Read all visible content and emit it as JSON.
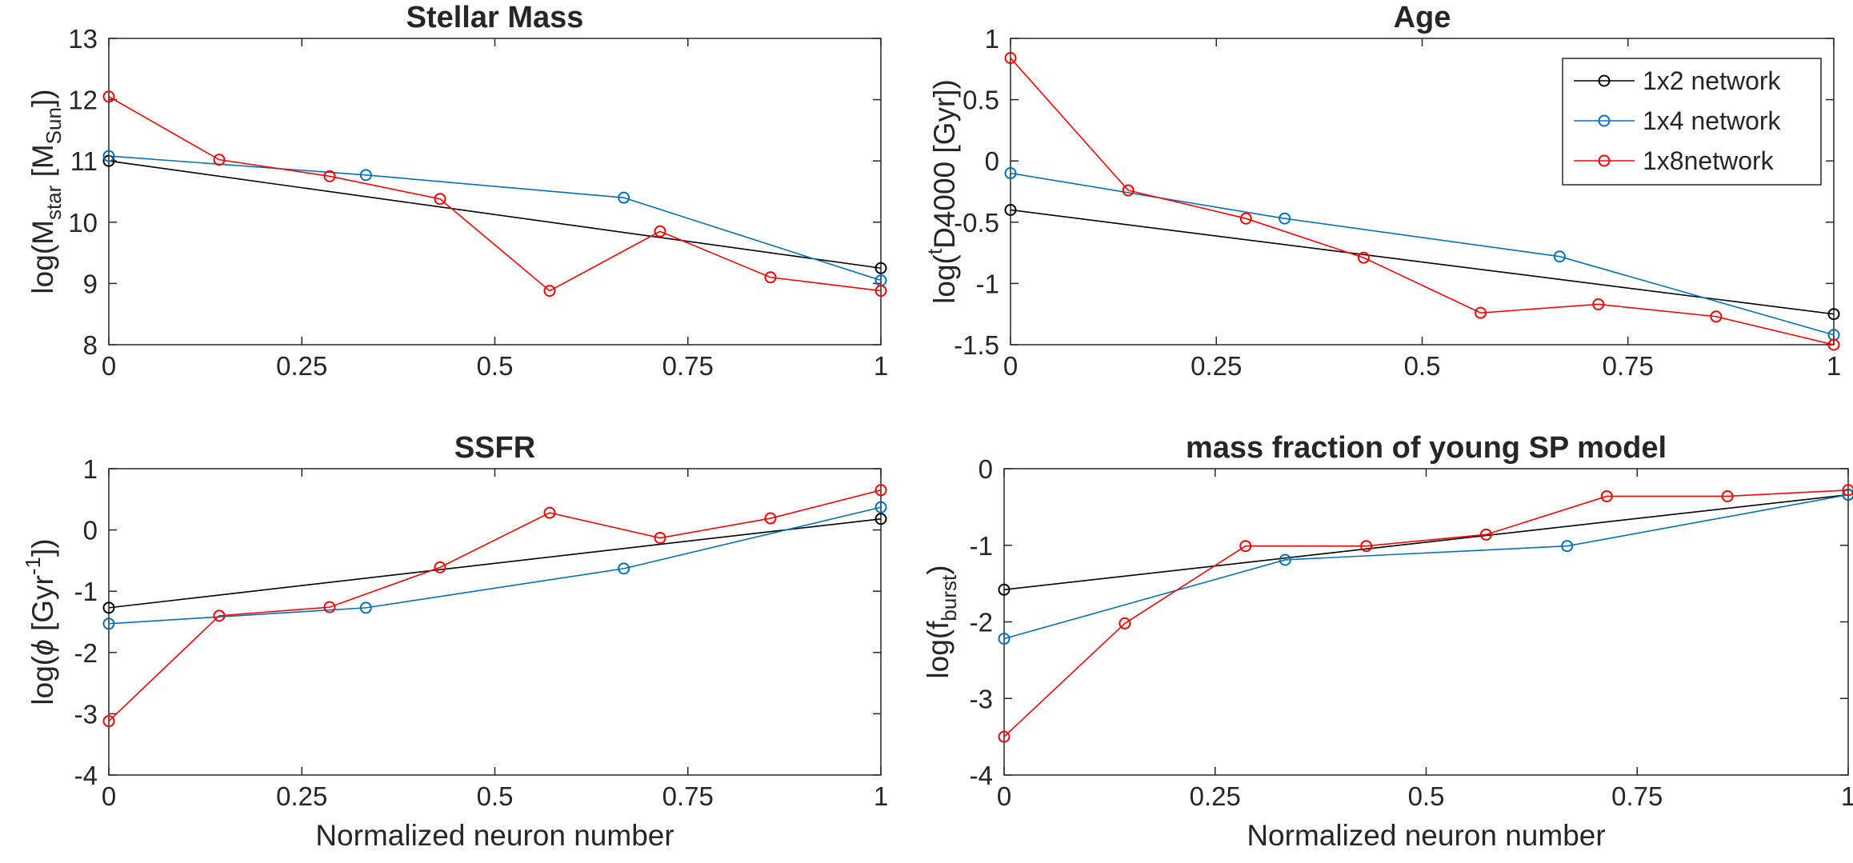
{
  "chart_data": [
    {
      "type": "line",
      "title": "Stellar Mass",
      "ylabel": {
        "base": "log(M",
        "sub": "star",
        "mid": " [M",
        "sub2": "Sun",
        "end": "])"
      },
      "xlabel": "",
      "xlim": [
        0,
        1
      ],
      "ylim": [
        8,
        13
      ],
      "xticks": [
        "0",
        "0.25",
        "0.5",
        "0.75",
        "1"
      ],
      "yticks": [
        "8",
        "9",
        "10",
        "11",
        "12",
        "13"
      ],
      "grid": false,
      "series": [
        {
          "color": "#000000",
          "x": [
            0,
            1
          ],
          "y": [
            11.0,
            9.25
          ]
        },
        {
          "color": "#0072BD",
          "x": [
            0,
            0.333,
            0.667,
            1
          ],
          "y": [
            11.08,
            10.77,
            10.4,
            9.05
          ]
        },
        {
          "color": "#FF0000",
          "x": [
            0,
            0.143,
            0.286,
            0.429,
            0.571,
            0.714,
            0.857,
            1
          ],
          "y": [
            12.05,
            11.02,
            10.75,
            10.38,
            8.88,
            9.85,
            9.1,
            8.88
          ]
        }
      ]
    },
    {
      "type": "line",
      "title": "Age",
      "ylabel": {
        "base": "log(",
        "sup": "t",
        "end": "D4000 [Gyr])"
      },
      "xlabel": "",
      "xlim": [
        0,
        1
      ],
      "ylim": [
        -1.5,
        1
      ],
      "xticks": [
        "0",
        "0.25",
        "0.5",
        "0.75",
        "1"
      ],
      "yticks": [
        "-1.5",
        "-1",
        "-0.5",
        "0",
        "0.5",
        "1"
      ],
      "grid": false,
      "legend": {
        "position": "top-right",
        "entries": [
          "1x2 network",
          "1x4 network",
          "1x8network"
        ]
      },
      "series": [
        {
          "color": "#000000",
          "x": [
            0,
            1
          ],
          "y": [
            -0.4,
            -1.25
          ]
        },
        {
          "color": "#0072BD",
          "x": [
            0,
            0.333,
            0.667,
            1
          ],
          "y": [
            -0.1,
            -0.47,
            -0.78,
            -1.42
          ]
        },
        {
          "color": "#FF0000",
          "x": [
            0,
            0.143,
            0.286,
            0.429,
            0.571,
            0.714,
            0.857,
            1
          ],
          "y": [
            0.84,
            -0.24,
            -0.47,
            -0.79,
            -1.24,
            -1.17,
            -1.27,
            -1.5
          ]
        }
      ]
    },
    {
      "type": "line",
      "title": "SSFR",
      "ylabel": {
        "base": "log(",
        "ital": "ϕ",
        "mid": " [Gyr",
        "sup": "-1",
        "end": "])"
      },
      "xlabel": "Normalized neuron number",
      "xlim": [
        0,
        1
      ],
      "ylim": [
        -4,
        1
      ],
      "xticks": [
        "0",
        "0.25",
        "0.5",
        "0.75",
        "1"
      ],
      "yticks": [
        "-4",
        "-3",
        "-2",
        "-1",
        "0",
        "1"
      ],
      "grid": false,
      "series": [
        {
          "color": "#000000",
          "x": [
            0,
            1
          ],
          "y": [
            -1.27,
            0.18
          ]
        },
        {
          "color": "#0072BD",
          "x": [
            0,
            0.333,
            0.667,
            1
          ],
          "y": [
            -1.53,
            -1.27,
            -0.63,
            0.37
          ]
        },
        {
          "color": "#FF0000",
          "x": [
            0,
            0.143,
            0.286,
            0.429,
            0.571,
            0.714,
            0.857,
            1
          ],
          "y": [
            -3.12,
            -1.4,
            -1.26,
            -0.61,
            0.28,
            -0.13,
            0.19,
            0.65
          ]
        }
      ]
    },
    {
      "type": "line",
      "title": "mass fraction of young SP model",
      "ylabel": {
        "base": "log(f",
        "sub": "burst",
        "end": ")"
      },
      "xlabel": "Normalized neuron number",
      "xlim": [
        0,
        1
      ],
      "ylim": [
        -4,
        0
      ],
      "xticks": [
        "0",
        "0.25",
        "0.5",
        "0.75",
        "1"
      ],
      "yticks": [
        "-4",
        "-3",
        "-2",
        "-1",
        "0"
      ],
      "grid": false,
      "series": [
        {
          "color": "#000000",
          "x": [
            0,
            1
          ],
          "y": [
            -1.58,
            -0.34
          ]
        },
        {
          "color": "#0072BD",
          "x": [
            0,
            0.333,
            0.667,
            1
          ],
          "y": [
            -2.22,
            -1.19,
            -1.01,
            -0.34
          ]
        },
        {
          "color": "#FF0000",
          "x": [
            0,
            0.143,
            0.286,
            0.429,
            0.571,
            0.714,
            0.857,
            1
          ],
          "y": [
            -3.5,
            -2.02,
            -1.01,
            -1.01,
            -0.86,
            -0.36,
            -0.36,
            -0.28
          ]
        }
      ]
    }
  ]
}
